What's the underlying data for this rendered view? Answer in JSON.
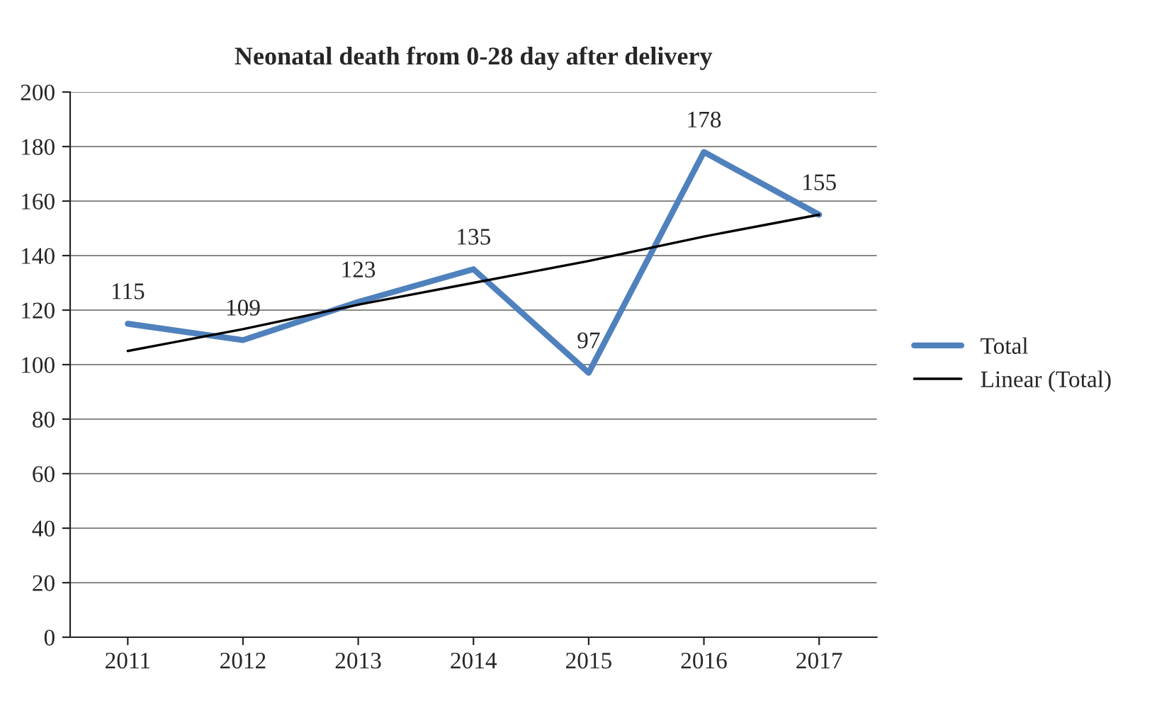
{
  "chart_data": {
    "type": "line",
    "title": "Neonatal death from 0-28 day after delivery",
    "categories": [
      "2011",
      "2012",
      "2013",
      "2014",
      "2015",
      "2016",
      "2017"
    ],
    "series": [
      {
        "name": "Total",
        "color": "#4f81bd",
        "values": [
          115,
          109,
          123,
          135,
          97,
          178,
          155
        ],
        "data_labels": true
      },
      {
        "name": "Linear (Total)",
        "color": "#000000",
        "type": "line",
        "values": [
          105,
          113,
          122,
          130,
          138,
          147,
          155
        ]
      }
    ],
    "ylim": [
      0,
      200
    ],
    "yticks": [
      0,
      20,
      40,
      60,
      80,
      100,
      120,
      140,
      160,
      180,
      200
    ],
    "grid": "y",
    "legend": "right",
    "marker": "none",
    "line_style": "solid"
  }
}
